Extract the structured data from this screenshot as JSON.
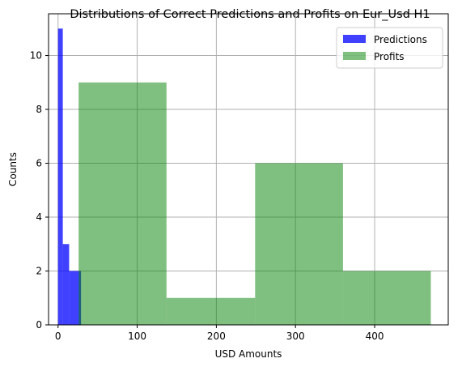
{
  "chart_data": {
    "type": "bar",
    "title": "Distributions of Correct Predictions and Profits on Eur_Usd H1",
    "xlabel": "USD Amounts",
    "ylabel": "Counts",
    "xlim": [
      -12,
      493
    ],
    "ylim": [
      0,
      11.55
    ],
    "xticks": [
      0,
      100,
      200,
      300,
      400
    ],
    "yticks": [
      0,
      2,
      4,
      6,
      8,
      10
    ],
    "grid": true,
    "legend_position": "top-right",
    "series": [
      {
        "name": "Predictions",
        "color": "#0000ff",
        "opacity": 0.75,
        "bins": [
          {
            "x0": 0,
            "x1": 6,
            "count": 11
          },
          {
            "x0": 6,
            "x1": 14,
            "count": 3
          },
          {
            "x0": 14,
            "x1": 29,
            "count": 2
          }
        ]
      },
      {
        "name": "Profits",
        "color": "#008000",
        "opacity": 0.5,
        "bins": [
          {
            "x0": 26,
            "x1": 137,
            "count": 9
          },
          {
            "x0": 137,
            "x1": 249,
            "count": 1
          },
          {
            "x0": 249,
            "x1": 360,
            "count": 6
          },
          {
            "x0": 360,
            "x1": 471,
            "count": 2
          }
        ]
      }
    ]
  }
}
